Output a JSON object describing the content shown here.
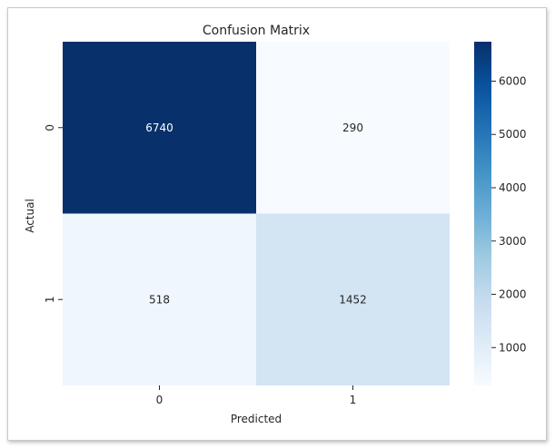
{
  "chart_data": {
    "type": "heatmap",
    "title": "Confusion Matrix",
    "xlabel": "Predicted",
    "ylabel": "Actual",
    "x_categories": [
      "0",
      "1"
    ],
    "y_categories": [
      "0",
      "1"
    ],
    "values": [
      [
        6740,
        290
      ],
      [
        518,
        1452
      ]
    ],
    "colormap": "Blues",
    "colorbar": {
      "min": 290,
      "max": 6740,
      "ticks": [
        1000,
        2000,
        3000,
        4000,
        5000,
        6000
      ],
      "tick_labels": [
        "1000",
        "2000",
        "3000",
        "4000",
        "5000",
        "6000"
      ]
    }
  }
}
